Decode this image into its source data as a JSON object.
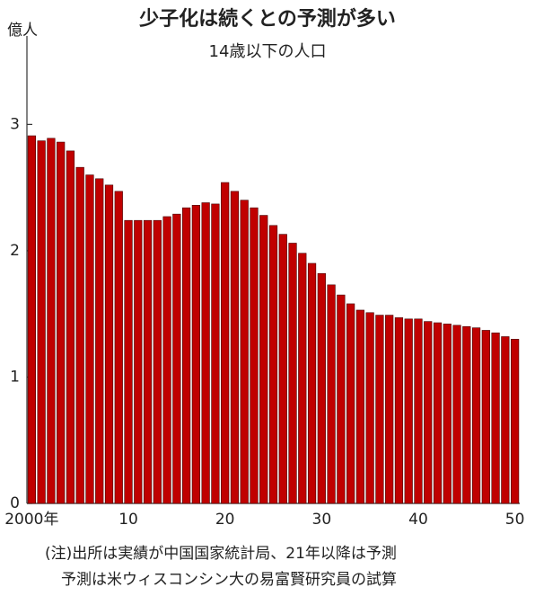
{
  "chart_data": {
    "type": "bar",
    "title": "少子化は続くとの予測が多い",
    "subtitle": "14歳以下の人口",
    "y_label": "億人",
    "notes": [
      "(注)出所は実績が中国国家統計局、21年以降は予測",
      "予測は米ウィスコンシン大の易富賢研究員の試算"
    ],
    "categories": [
      "2000年",
      null,
      null,
      null,
      null,
      null,
      null,
      null,
      null,
      null,
      "10",
      null,
      null,
      null,
      null,
      null,
      null,
      null,
      null,
      null,
      "20",
      null,
      null,
      null,
      null,
      null,
      null,
      null,
      null,
      null,
      "30",
      null,
      null,
      null,
      null,
      null,
      null,
      null,
      null,
      null,
      "40",
      null,
      null,
      null,
      null,
      null,
      null,
      null,
      null,
      null,
      "50"
    ],
    "values": [
      2.91,
      2.87,
      2.89,
      2.86,
      2.79,
      2.66,
      2.6,
      2.57,
      2.52,
      2.47,
      2.24,
      2.24,
      2.24,
      2.24,
      2.27,
      2.29,
      2.34,
      2.36,
      2.38,
      2.37,
      2.54,
      2.47,
      2.4,
      2.34,
      2.28,
      2.2,
      2.13,
      2.06,
      1.98,
      1.9,
      1.82,
      1.73,
      1.65,
      1.58,
      1.53,
      1.51,
      1.49,
      1.49,
      1.47,
      1.46,
      1.46,
      1.44,
      1.43,
      1.42,
      1.41,
      1.4,
      1.39,
      1.37,
      1.35,
      1.32,
      1.3
    ],
    "color": "#c00000",
    "ylim": [
      0,
      3.7
    ],
    "yticks": [
      0,
      1,
      2,
      3
    ],
    "grid": false
  }
}
